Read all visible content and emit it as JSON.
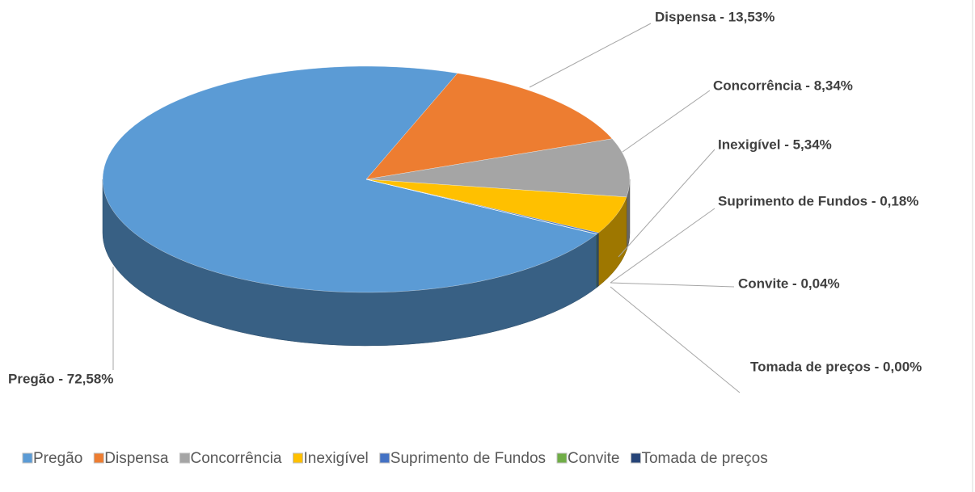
{
  "chart_data": {
    "type": "pie",
    "categories": [
      "Pregão",
      "Dispensa",
      "Concorrência",
      "Inexigível",
      "Suprimento de Fundos",
      "Convite",
      "Tomada de preços"
    ],
    "values": [
      72.58,
      13.53,
      8.34,
      5.34,
      0.18,
      0.04,
      0.0
    ],
    "value_labels": [
      "Pregão - 72,58%",
      "Dispensa  - 13,53%",
      "Concorrência - 8,34%",
      "Inexigível - 5,34%",
      "Suprimento de Fundos - 0,18%",
      "Convite - 0,04%",
      "Tomada de preços - 0,00%"
    ],
    "colors": [
      "#5b9bd5",
      "#ed7d31",
      "#a5a5a5",
      "#ffc000",
      "#4472c4",
      "#70ad47",
      "#264478"
    ],
    "legend": "bottom"
  }
}
